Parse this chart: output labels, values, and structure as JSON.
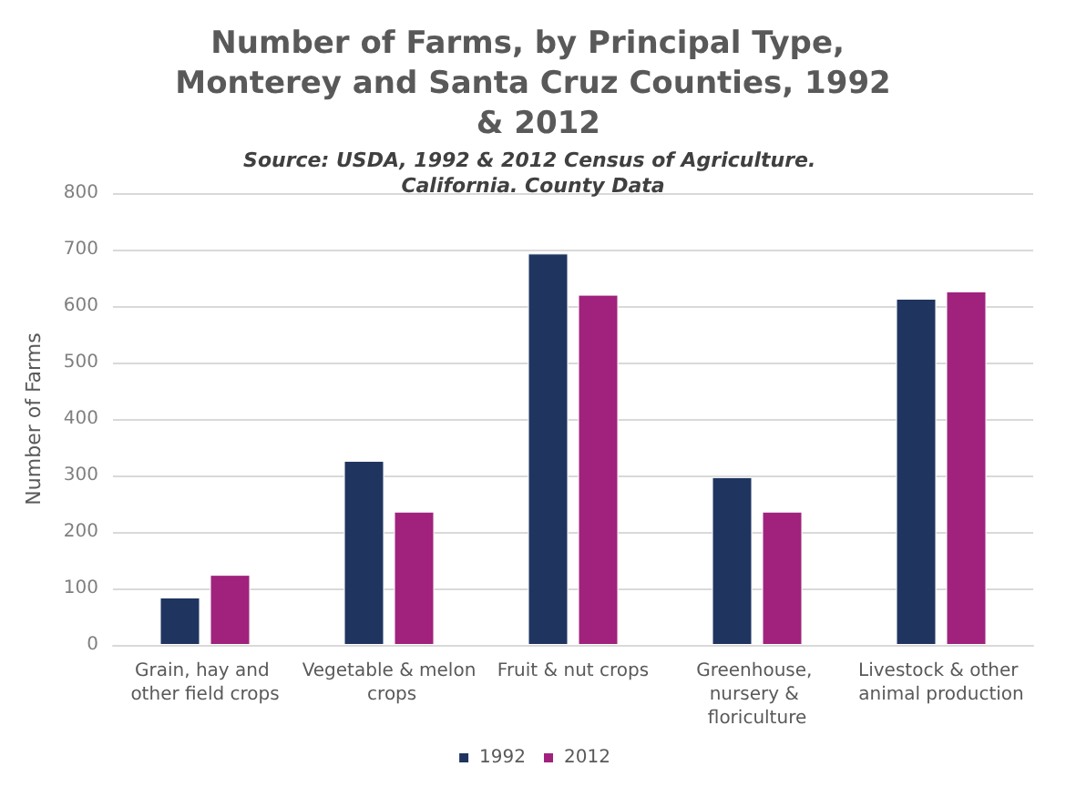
{
  "chart_data": {
    "type": "bar",
    "title": "Number of Farms, by Principal Type, Monterey and Santa Cruz Counties, 1992 & 2012",
    "subtitle": "Source: USDA, 1992 & 2012 Census of Agriculture. California. County Data",
    "ylabel": "Number of Farms",
    "categories": [
      "Grain, hay and other field crops",
      "Vegetable & melon crops",
      "Fruit & nut crops",
      "Greenhouse, nursery & floriculture",
      "Livestock & other animal production"
    ],
    "series": [
      {
        "name": "1992",
        "color": "#1f3560",
        "values": [
          84,
          326,
          693,
          297,
          613
        ]
      },
      {
        "name": "2012",
        "color": "#a0227d",
        "values": [
          124,
          236,
          620,
          236,
          626
        ]
      }
    ],
    "ylim": [
      0,
      800
    ],
    "yticks": [
      0,
      100,
      200,
      300,
      400,
      500,
      600,
      700,
      800
    ],
    "grid": "y",
    "legend": "bottom"
  }
}
